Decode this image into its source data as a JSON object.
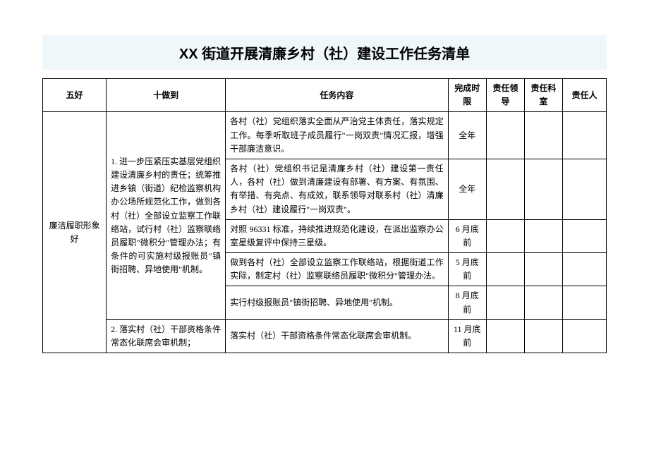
{
  "title": "XX 街道开展清廉乡村（社）建设工作任务清单",
  "headers": {
    "wuhao": "五好",
    "shizuodao": "十做到",
    "content": "任务内容",
    "deadline": "完成时限",
    "leader": "责任领导",
    "dept": "责任科室",
    "person": "责任人"
  },
  "row_wuhao": "廉洁履职形象好",
  "group1": {
    "shizuodao": "1. 进一步压紧压实基层党组织建设清廉乡村的责任；统筹推进乡镇（街道）纪检监察机构办公场所规范化工作，做到各村（社）全部设立监察工作联络站，试行村（社）监察联络员履职\"微积分\"管理办法；有条件的可实施村级报账员\"镇街招聘、异地使用\"机制。",
    "tasks": [
      {
        "content": "各村（社）党组织落实全面从严治党主体责任，落实规定工作。每季听取班子成员履行\"一岗双责\"情况汇报，增强干部廉洁意识。",
        "deadline": "全年"
      },
      {
        "content": "各村（社）党组织书记是清廉乡村（社）建设第一责任人，各村（社）做到清廉建设有部署、有方案、有氛围、有举措、有亮点、有成效，联系领导对联系村（社）清廉乡村（社）建设履行\"一岗双责\"。",
        "deadline": "全年"
      },
      {
        "content": "对照 96331 标准，持续推进规范化建设，在派出监察办公室星级复评中保持三星级。",
        "deadline": "6 月底前"
      },
      {
        "content": "做到各村（社）全部设立监察工作联络站，根据街道工作实际，制定村（社）监察联络员履职\"微积分\"管理办法。",
        "deadline": "5 月底前"
      },
      {
        "content": "实行村级报账员\"镇街招聘、异地使用\"机制。",
        "deadline": "8 月底前"
      }
    ]
  },
  "group2": {
    "shizuodao": "2. 落实村（社）干部资格条件常态化联席会审机制；",
    "tasks": [
      {
        "content": "落实村（社）干部资格条件常态化联席会审机制。",
        "deadline": "11 月底前"
      }
    ]
  },
  "styling": {
    "title_bg": "#f0f7fb",
    "border_color": "#000000",
    "font_size_body": 12,
    "font_size_title": 20
  }
}
